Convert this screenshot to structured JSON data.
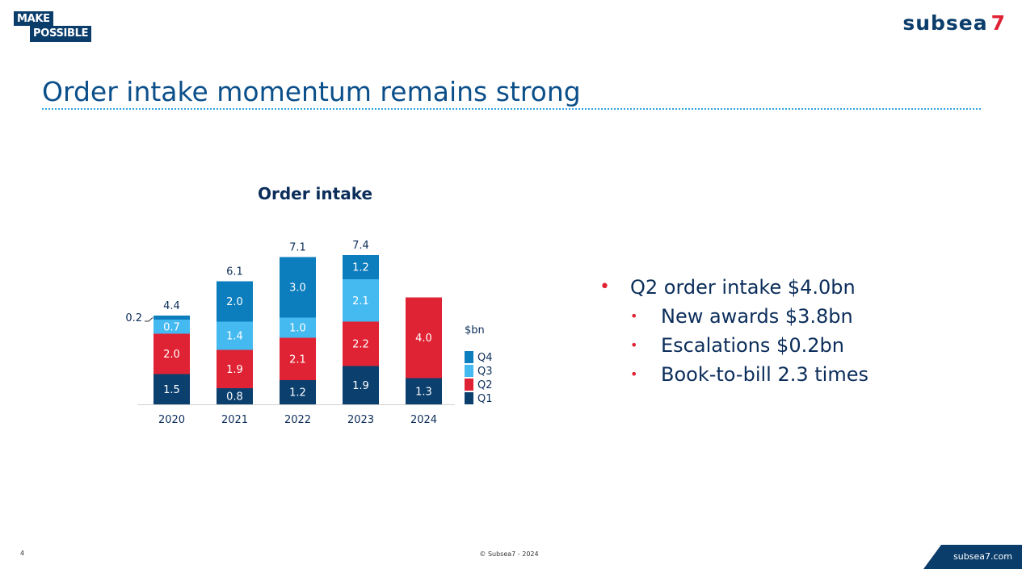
{
  "header": {
    "logo_line1": "MAKE",
    "logo_line2": "POSSIBLE",
    "brand_name": "subsea",
    "brand_number": "7",
    "brand_color": "#0b3d6b",
    "brand_accent": "#e02334"
  },
  "slide": {
    "title": "Order intake momentum remains strong"
  },
  "chart_data": {
    "type": "bar",
    "stacked": true,
    "title": "Order intake",
    "unit_label": "$bn",
    "categories": [
      "2020",
      "2021",
      "2022",
      "2023",
      "2024"
    ],
    "series": [
      {
        "name": "Q1",
        "color": "#0b3f6e",
        "values": [
          1.5,
          0.8,
          1.2,
          1.9,
          1.3
        ],
        "labels": [
          "1.5",
          "0.8",
          "1.2",
          "1.9",
          "1.3"
        ]
      },
      {
        "name": "Q2",
        "color": "#e02334",
        "values": [
          2.0,
          1.9,
          2.1,
          2.2,
          4.0
        ],
        "labels": [
          "2.0",
          "1.9",
          "2.1",
          "2.2",
          "4.0"
        ]
      },
      {
        "name": "Q3",
        "color": "#45baf0",
        "values": [
          0.7,
          1.4,
          1.0,
          2.1,
          null
        ],
        "labels": [
          "0.7",
          "1.4",
          "1.0",
          "2.1",
          ""
        ]
      },
      {
        "name": "Q4",
        "color": "#0c7dbd",
        "values": [
          0.2,
          2.0,
          3.0,
          1.2,
          null
        ],
        "labels": [
          "0.2",
          "2.0",
          "3.0",
          "1.2",
          ""
        ]
      }
    ],
    "totals": [
      "4.4",
      "6.1",
      "7.1",
      "7.4",
      ""
    ],
    "legend_order": [
      "Q4",
      "Q3",
      "Q2",
      "Q1"
    ],
    "legend_position": "right",
    "ylim": [
      0,
      8
    ],
    "grid": false
  },
  "bullets": [
    {
      "text": "Q2 order intake $4.0bn",
      "level": 1
    },
    {
      "text": "New awards $3.8bn",
      "level": 2
    },
    {
      "text": "Escalations $0.2bn",
      "level": 2
    },
    {
      "text": "Book-to-bill 2.3 times",
      "level": 2
    }
  ],
  "footer": {
    "page_number": "4",
    "copyright": "© Subsea7 - 2024",
    "url": "subsea7.com"
  }
}
